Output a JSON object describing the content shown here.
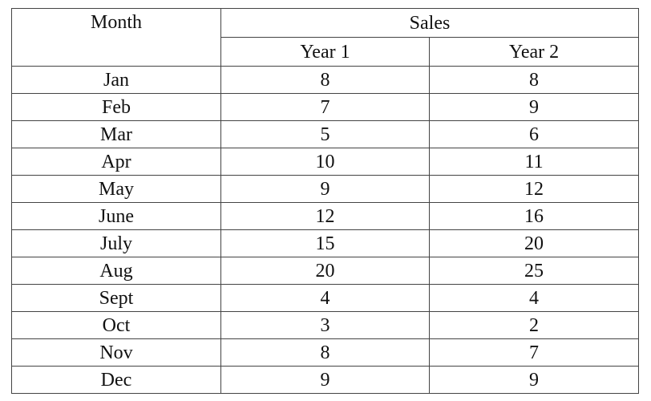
{
  "table": {
    "headers": {
      "month": "Month",
      "sales": "Sales",
      "year1": "Year 1",
      "year2": "Year 2"
    },
    "rows": [
      {
        "month": "Jan",
        "year1": "8",
        "year2": "8"
      },
      {
        "month": "Feb",
        "year1": "7",
        "year2": "9"
      },
      {
        "month": "Mar",
        "year1": "5",
        "year2": "6"
      },
      {
        "month": "Apr",
        "year1": "10",
        "year2": "11"
      },
      {
        "month": "May",
        "year1": "9",
        "year2": "12"
      },
      {
        "month": "June",
        "year1": "12",
        "year2": "16"
      },
      {
        "month": "July",
        "year1": "15",
        "year2": "20"
      },
      {
        "month": "Aug",
        "year1": "20",
        "year2": "25"
      },
      {
        "month": "Sept",
        "year1": "4",
        "year2": "4"
      },
      {
        "month": "Oct",
        "year1": "3",
        "year2": "2"
      },
      {
        "month": "Nov",
        "year1": "8",
        "year2": "7"
      },
      {
        "month": "Dec",
        "year1": "9",
        "year2": "9"
      }
    ]
  }
}
